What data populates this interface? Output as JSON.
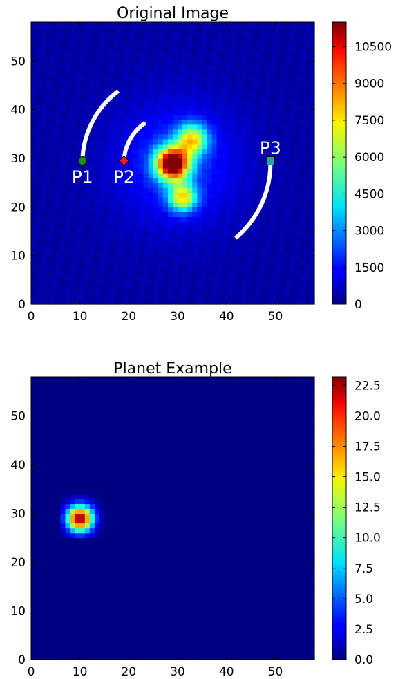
{
  "chart_data": [
    {
      "type": "heatmap",
      "title": "Original Image",
      "xlim": [
        0,
        58
      ],
      "ylim": [
        0,
        58
      ],
      "x_ticks": [
        0,
        10,
        20,
        30,
        40,
        50
      ],
      "y_ticks": [
        0,
        10,
        20,
        30,
        40,
        50
      ],
      "colormap": "jet",
      "colorbar": {
        "min": 0,
        "max": 11500,
        "ticks": [
          "0",
          "1500",
          "3000",
          "4500",
          "6000",
          "7500",
          "9000",
          "10500"
        ],
        "tick_values": [
          0,
          1500,
          3000,
          4500,
          6000,
          7500,
          9000,
          10500
        ]
      },
      "sources": [
        {
          "name": "star core",
          "x": 29,
          "y": 29,
          "amp": 11500,
          "sigma": 2.4
        },
        {
          "name": "speckle upper",
          "x": 33,
          "y": 34,
          "amp": 6000,
          "sigma": 2.2
        },
        {
          "name": "speckle lower",
          "x": 31,
          "y": 22,
          "amp": 6200,
          "sigma": 2.0
        },
        {
          "name": "halo",
          "x": 30,
          "y": 29,
          "amp": 1600,
          "sigma": 9
        }
      ],
      "background": 400,
      "markers": [
        {
          "label": "P1",
          "x": 10.5,
          "y": 29.5,
          "shape": "circle",
          "color": "#1a8f1a"
        },
        {
          "label": "P2",
          "x": 19,
          "y": 29.5,
          "shape": "diamond",
          "color": "#ff1a1a"
        },
        {
          "label": "P3",
          "x": 49,
          "y": 29.5,
          "shape": "square",
          "color": "#1aa5b5"
        }
      ],
      "arcs": [
        {
          "center": [
            29,
            29
          ],
          "radius": 18.5,
          "from_deg": 180,
          "to_deg": 127
        },
        {
          "center": [
            29,
            29
          ],
          "radius": 10,
          "from_deg": 180,
          "to_deg": 124
        },
        {
          "center": [
            29,
            29
          ],
          "radius": 20,
          "from_deg": 0,
          "to_deg": -50
        }
      ]
    },
    {
      "type": "heatmap",
      "title": "Planet Example",
      "xlim": [
        0,
        58
      ],
      "ylim": [
        0,
        58
      ],
      "x_ticks": [
        0,
        10,
        20,
        30,
        40,
        50
      ],
      "y_ticks": [
        0,
        10,
        20,
        30,
        40,
        50
      ],
      "colormap": "jet",
      "colorbar": {
        "min": 0,
        "max": 23.2,
        "ticks": [
          "0.0",
          "2.5",
          "5.0",
          "7.5",
          "10.0",
          "12.5",
          "15.0",
          "17.5",
          "20.0",
          "22.5"
        ],
        "tick_values": [
          0,
          2.5,
          5,
          7.5,
          10,
          12.5,
          15,
          17.5,
          20,
          22.5
        ]
      },
      "sources": [
        {
          "name": "planet",
          "x": 10,
          "y": 29,
          "amp": 23.2,
          "sigma": 1.9,
          "cutoff": [
            6,
            14,
            25,
            33
          ]
        }
      ],
      "background": 0
    }
  ],
  "panels": [
    {
      "title": "Original Image"
    },
    {
      "title": "Planet Example"
    }
  ]
}
